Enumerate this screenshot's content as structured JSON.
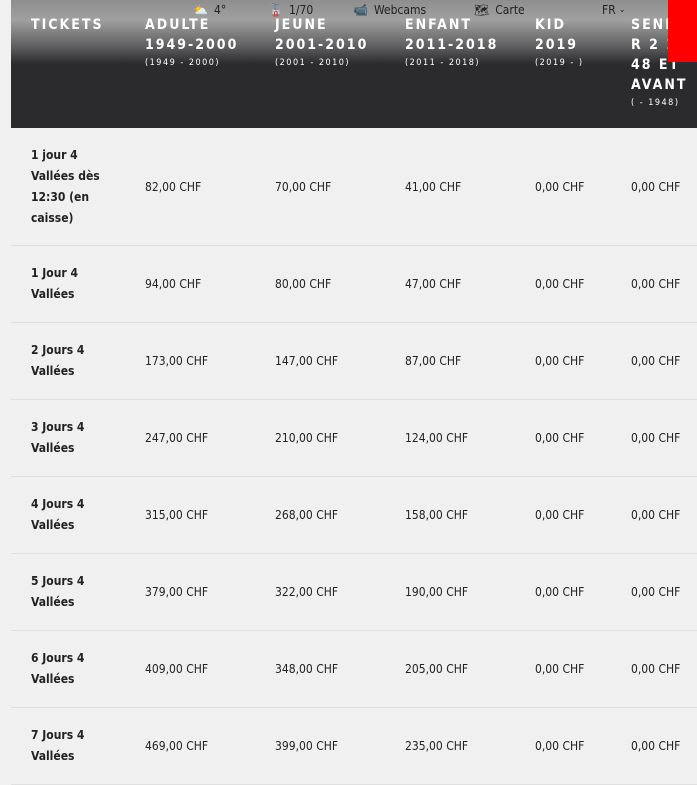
{
  "topbar": {
    "weather": "4°",
    "lifts": "1/70",
    "webcams": "Webcams",
    "map": "Carte",
    "lang": "FR"
  },
  "headers": [
    {
      "title": "TICKETS",
      "sub": ""
    },
    {
      "title": "ADULTE 1949-2000",
      "sub": "(1949 - 2000)"
    },
    {
      "title": "JEUNE 2001-2010",
      "sub": "(2001 - 2010)"
    },
    {
      "title": "ENFANT 2011-2018",
      "sub": "(2011 - 2018)"
    },
    {
      "title": "KID 2019",
      "sub": "(2019 - )"
    },
    {
      "title": "SENIOR 2 1948 ET AVANT",
      "sub": "( - 1948)"
    }
  ],
  "rows": [
    {
      "name": "1 jour 4 Vallées dès 12:30 (en caisse)",
      "prices": [
        "82,00 CHF",
        "70,00 CHF",
        "41,00 CHF",
        "0,00 CHF",
        "0,00 CHF"
      ]
    },
    {
      "name": "1 Jour 4 Vallées",
      "prices": [
        "94,00 CHF",
        "80,00 CHF",
        "47,00 CHF",
        "0,00 CHF",
        "0,00 CHF"
      ]
    },
    {
      "name": "2 Jours 4 Vallées",
      "prices": [
        "173,00 CHF",
        "147,00 CHF",
        "87,00 CHF",
        "0,00 CHF",
        "0,00 CHF"
      ]
    },
    {
      "name": "3 Jours 4 Vallées",
      "prices": [
        "247,00 CHF",
        "210,00 CHF",
        "124,00 CHF",
        "0,00 CHF",
        "0,00 CHF"
      ]
    },
    {
      "name": "4 Jours 4 Vallées",
      "prices": [
        "315,00 CHF",
        "268,00 CHF",
        "158,00 CHF",
        "0,00 CHF",
        "0,00 CHF"
      ]
    },
    {
      "name": "5 Jours 4 Vallées",
      "prices": [
        "379,00 CHF",
        "322,00 CHF",
        "190,00 CHF",
        "0,00 CHF",
        "0,00 CHF"
      ]
    },
    {
      "name": "6 Jours 4 Vallées",
      "prices": [
        "409,00 CHF",
        "348,00 CHF",
        "205,00 CHF",
        "0,00 CHF",
        "0,00 CHF"
      ]
    },
    {
      "name": "7 Jours 4 Vallées",
      "prices": [
        "469,00 CHF",
        "399,00 CHF",
        "235,00 CHF",
        "0,00 CHF",
        "0,00 CHF"
      ]
    }
  ]
}
